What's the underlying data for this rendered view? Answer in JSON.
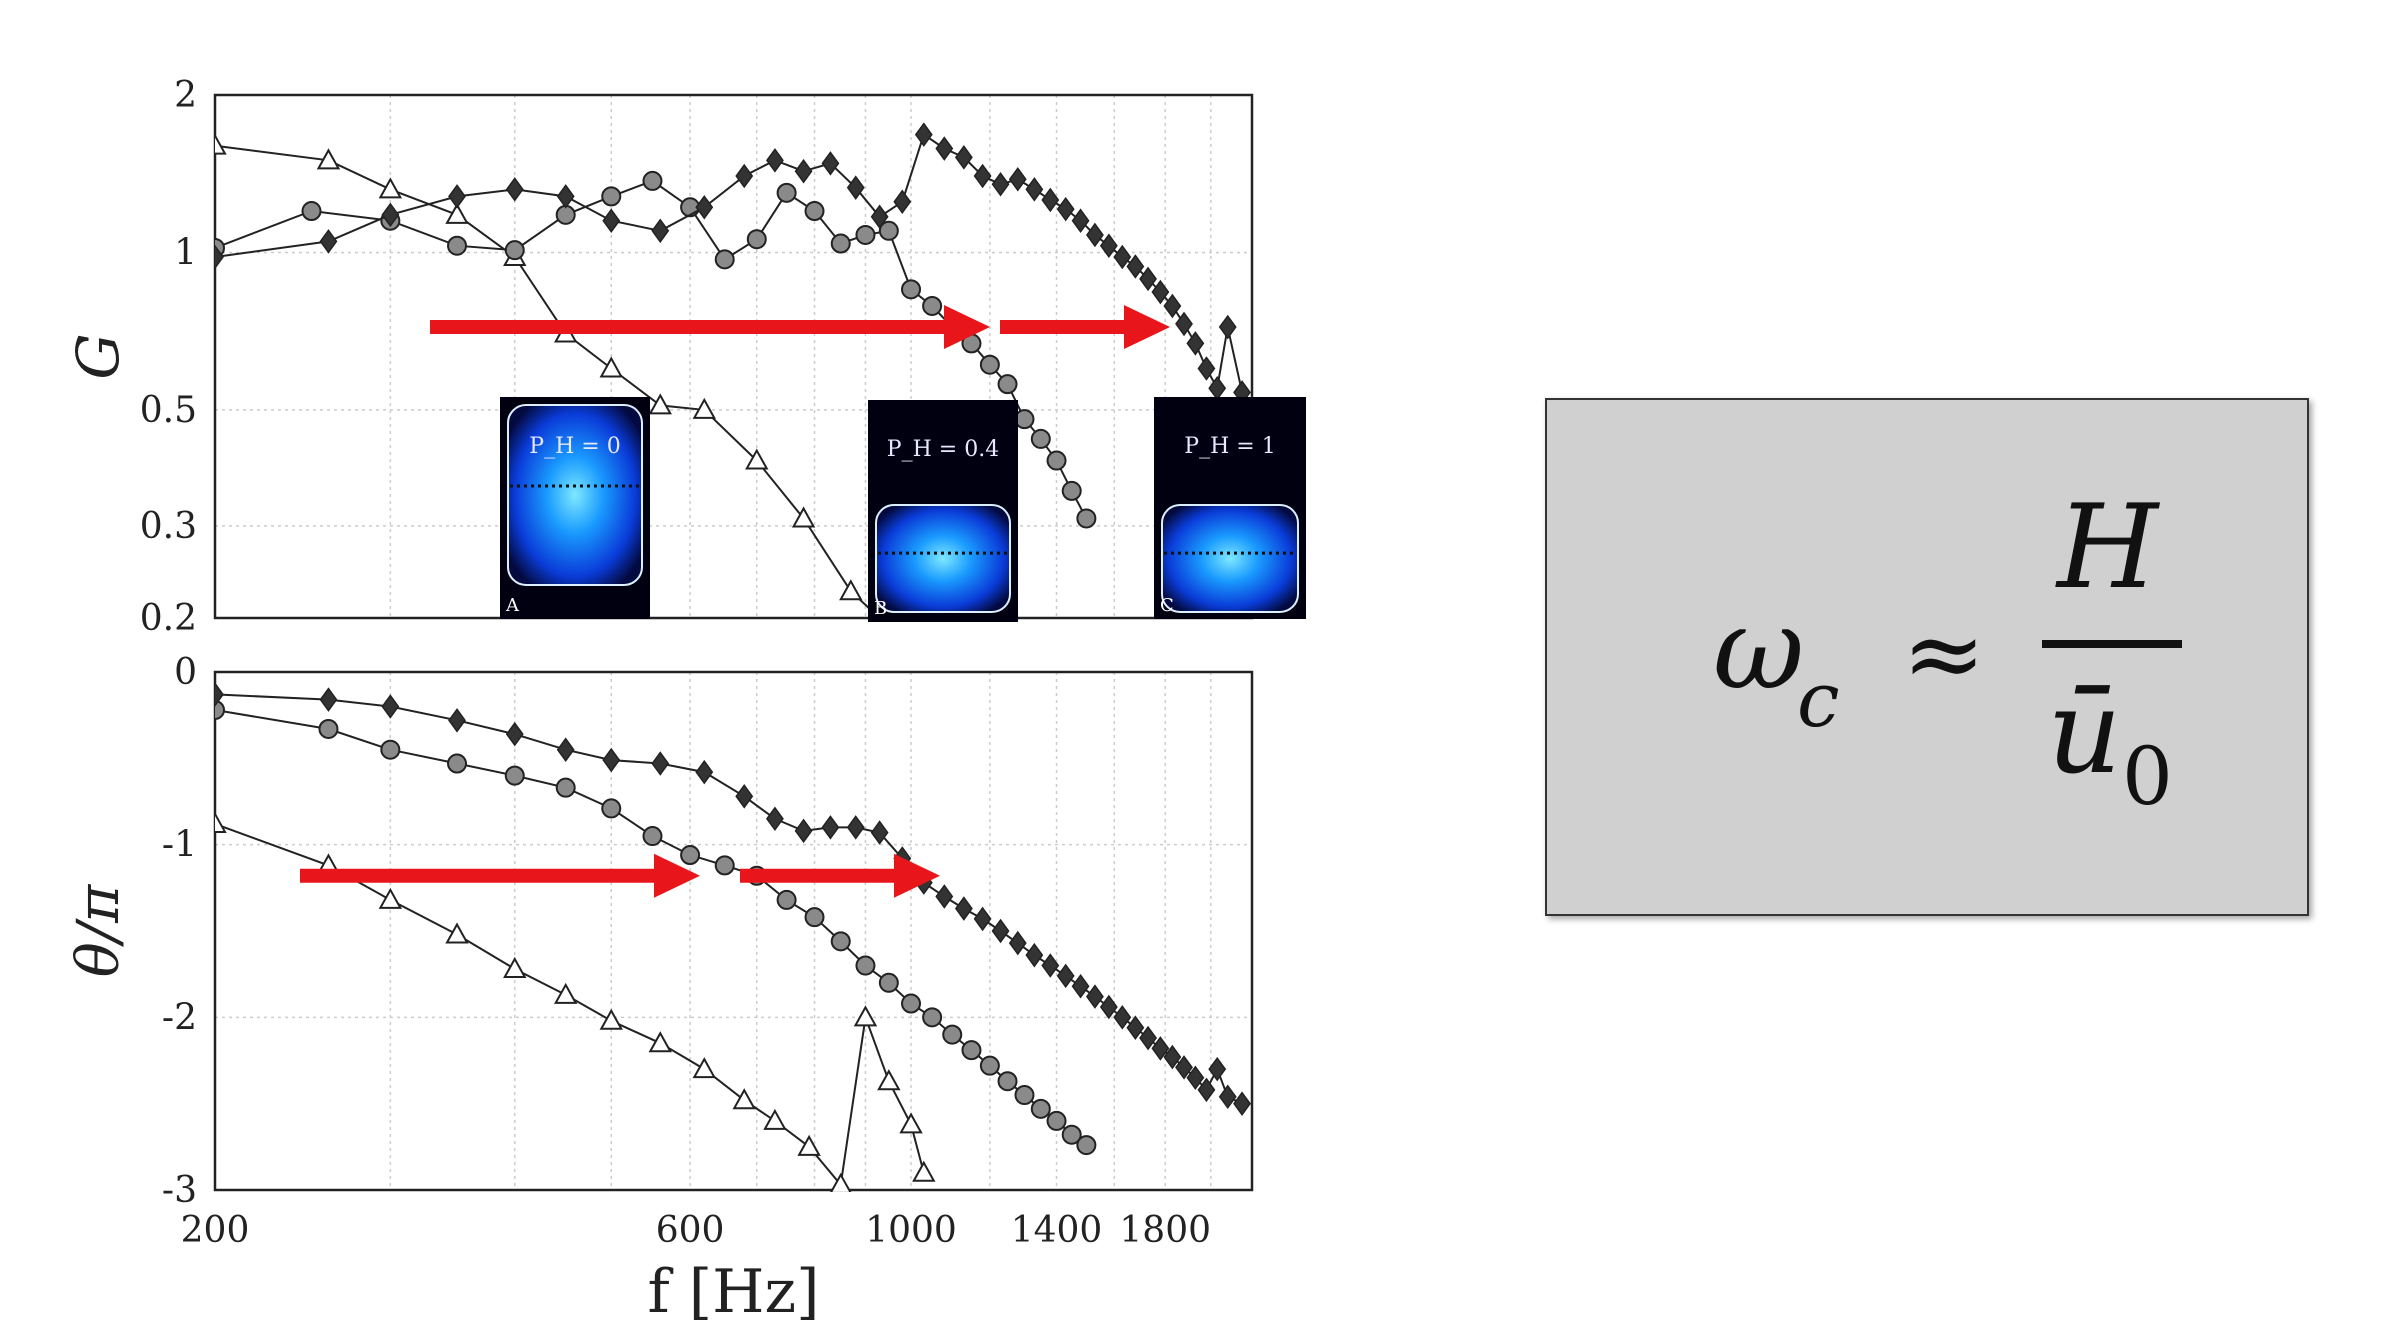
{
  "chart_data": [
    {
      "type": "line",
      "panel": "top",
      "ylabel": "G",
      "yscale": "log",
      "ylim": [
        0.2,
        2
      ],
      "xscale": "log",
      "xlim": [
        200,
        2200
      ],
      "ytick_labels": [
        "2",
        "1",
        "0.5",
        "0.3",
        "0.2"
      ],
      "ytick_values": [
        2,
        1,
        0.5,
        0.3,
        0.2
      ],
      "grid": true,
      "series": [
        {
          "marker": "triangle",
          "x": [
            200,
            260,
            300,
            350,
            400,
            450,
            500,
            560,
            620,
            700,
            780,
            870,
            930,
            980
          ],
          "y": [
            1.6,
            1.5,
            1.32,
            1.18,
            0.98,
            0.7,
            0.6,
            0.51,
            0.5,
            0.4,
            0.31,
            0.225,
            0.2,
            0.26
          ]
        },
        {
          "marker": "circle",
          "x": [
            200,
            250,
            300,
            350,
            400,
            450,
            500,
            550,
            600,
            650,
            700,
            750,
            800,
            850,
            900,
            950,
            1000,
            1050,
            1100,
            1150,
            1200,
            1250,
            1300,
            1350,
            1400,
            1450,
            1500
          ],
          "y": [
            1.02,
            1.2,
            1.15,
            1.03,
            1.01,
            1.18,
            1.28,
            1.37,
            1.22,
            0.97,
            1.06,
            1.3,
            1.2,
            1.04,
            1.08,
            1.1,
            0.85,
            0.79,
            0.72,
            0.67,
            0.61,
            0.56,
            0.48,
            0.44,
            0.4,
            0.35,
            0.31
          ]
        },
        {
          "marker": "diamond",
          "x": [
            200,
            260,
            300,
            350,
            400,
            450,
            500,
            560,
            620,
            680,
            730,
            780,
            830,
            880,
            930,
            980,
            1030,
            1080,
            1130,
            1180,
            1230,
            1280,
            1330,
            1380,
            1430,
            1480,
            1530,
            1580,
            1630,
            1680,
            1730,
            1780,
            1830,
            1880,
            1930,
            1980,
            2030,
            2080,
            2150
          ],
          "y": [
            0.98,
            1.05,
            1.18,
            1.28,
            1.32,
            1.28,
            1.15,
            1.1,
            1.22,
            1.4,
            1.5,
            1.43,
            1.48,
            1.33,
            1.17,
            1.25,
            1.68,
            1.58,
            1.52,
            1.4,
            1.35,
            1.38,
            1.32,
            1.26,
            1.21,
            1.15,
            1.08,
            1.03,
            0.98,
            0.94,
            0.89,
            0.84,
            0.79,
            0.73,
            0.67,
            0.6,
            0.55,
            0.72,
            0.54
          ]
        }
      ],
      "insets": [
        {
          "label": "P_H = 0",
          "corner": "A"
        },
        {
          "label": "P_H = 0.4",
          "corner": "B"
        },
        {
          "label": "P_H = 1",
          "corner": "C"
        }
      ]
    },
    {
      "type": "line",
      "panel": "bottom",
      "ylabel": "θ/π",
      "ylim": [
        -3,
        0
      ],
      "xscale": "log",
      "xlim": [
        200,
        2200
      ],
      "ytick_labels": [
        "0",
        "-1",
        "-2",
        "-3"
      ],
      "ytick_values": [
        0,
        -1,
        -2,
        -3
      ],
      "xlabel": "f [Hz]",
      "xtick_labels": [
        "200",
        "600",
        "1000",
        "1400",
        "1800"
      ],
      "xtick_values": [
        200,
        600,
        1000,
        1400,
        1800
      ],
      "grid": true,
      "series": [
        {
          "marker": "triangle",
          "x": [
            200,
            260,
            300,
            350,
            400,
            450,
            500,
            560,
            620,
            680,
            730,
            790,
            850,
            900,
            950,
            1000,
            1030
          ],
          "y": [
            -0.88,
            -1.12,
            -1.32,
            -1.52,
            -1.72,
            -1.87,
            -2.02,
            -2.15,
            -2.3,
            -2.48,
            -2.6,
            -2.75,
            -2.97,
            -2.0,
            -2.37,
            -2.62,
            -2.9
          ]
        },
        {
          "marker": "circle",
          "x": [
            200,
            260,
            300,
            350,
            400,
            450,
            500,
            550,
            600,
            650,
            700,
            750,
            800,
            850,
            900,
            950,
            1000,
            1050,
            1100,
            1150,
            1200,
            1250,
            1300,
            1350,
            1400,
            1450,
            1500
          ],
          "y": [
            -0.22,
            -0.33,
            -0.45,
            -0.53,
            -0.6,
            -0.67,
            -0.79,
            -0.95,
            -1.06,
            -1.12,
            -1.18,
            -1.32,
            -1.42,
            -1.56,
            -1.7,
            -1.8,
            -1.92,
            -2.0,
            -2.1,
            -2.19,
            -2.28,
            -2.37,
            -2.45,
            -2.53,
            -2.6,
            -2.68,
            -2.74
          ]
        },
        {
          "marker": "diamond",
          "x": [
            200,
            260,
            300,
            350,
            400,
            450,
            500,
            560,
            620,
            680,
            730,
            780,
            830,
            880,
            930,
            980,
            1030,
            1080,
            1130,
            1180,
            1230,
            1280,
            1330,
            1380,
            1430,
            1480,
            1530,
            1580,
            1630,
            1680,
            1730,
            1780,
            1830,
            1880,
            1930,
            1980,
            2030,
            2080,
            2150
          ],
          "y": [
            -0.13,
            -0.16,
            -0.2,
            -0.28,
            -0.36,
            -0.45,
            -0.51,
            -0.53,
            -0.58,
            -0.72,
            -0.85,
            -0.92,
            -0.9,
            -0.9,
            -0.93,
            -1.08,
            -1.22,
            -1.3,
            -1.37,
            -1.43,
            -1.5,
            -1.57,
            -1.64,
            -1.7,
            -1.76,
            -1.82,
            -1.88,
            -1.94,
            -2.0,
            -2.06,
            -2.12,
            -2.18,
            -2.23,
            -2.29,
            -2.35,
            -2.42,
            -2.3,
            -2.46,
            -2.5
          ]
        }
      ]
    }
  ],
  "formula": {
    "lhs_symbol": "ω",
    "lhs_subscript": "c",
    "relation": "≈",
    "numerator": "H",
    "denominator_symbol": "ū",
    "denominator_subscript": "0"
  },
  "colors": {
    "arrow": "#e8161a",
    "marker_fill_circle": "#8a8a8a",
    "marker_fill_diamond": "#333333",
    "line": "#222222",
    "grid": "#cccccc",
    "box_bg": "#d0d0d0"
  }
}
